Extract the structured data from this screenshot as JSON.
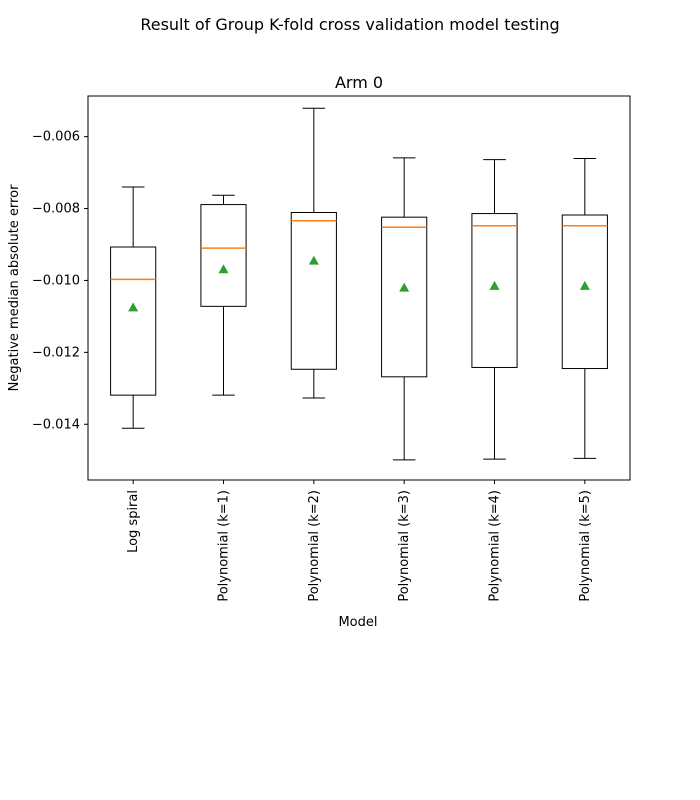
{
  "chart_data": {
    "type": "box",
    "suptitle": "Result of Group K-fold cross validation model testing",
    "title": "Arm 0",
    "xlabel": "Model",
    "ylabel": "Negative median absolute error",
    "ylim": [
      -0.01555,
      -0.00487
    ],
    "yticks": [
      -0.014,
      -0.012,
      -0.01,
      -0.008,
      -0.006
    ],
    "ytick_labels": [
      "−0.014",
      "−0.012",
      "−0.010",
      "−0.008",
      "−0.006"
    ],
    "categories": [
      "Log spiral",
      "Polynomial (k=1)",
      "Polynomial (k=2)",
      "Polynomial (k=3)",
      "Polynomial (k=4)",
      "Polynomial (k=5)"
    ],
    "boxes": [
      {
        "whisker_low": -0.01411,
        "q1": -0.01319,
        "median": -0.00997,
        "q3": -0.00907,
        "whisker_high": -0.0074,
        "mean": -0.01075
      },
      {
        "whisker_low": -0.01319,
        "q1": -0.01072,
        "median": -0.0091,
        "q3": -0.00789,
        "whisker_high": -0.00763,
        "mean": -0.00969
      },
      {
        "whisker_low": -0.01327,
        "q1": -0.01247,
        "median": -0.00834,
        "q3": -0.00811,
        "whisker_high": -0.00521,
        "mean": -0.00945
      },
      {
        "whisker_low": -0.01499,
        "q1": -0.01268,
        "median": -0.00852,
        "q3": -0.00824,
        "whisker_high": -0.00659,
        "mean": -0.0102
      },
      {
        "whisker_low": -0.01497,
        "q1": -0.01242,
        "median": -0.00848,
        "q3": -0.00814,
        "whisker_high": -0.00664,
        "mean": -0.01015
      },
      {
        "whisker_low": -0.01495,
        "q1": -0.01245,
        "median": -0.00848,
        "q3": -0.00818,
        "whisker_high": -0.00661,
        "mean": -0.01015
      }
    ],
    "colors": {
      "box": "#000000",
      "median": "#ff7f0e",
      "mean": "#2ca02c"
    },
    "grid": false,
    "show_means": true
  }
}
